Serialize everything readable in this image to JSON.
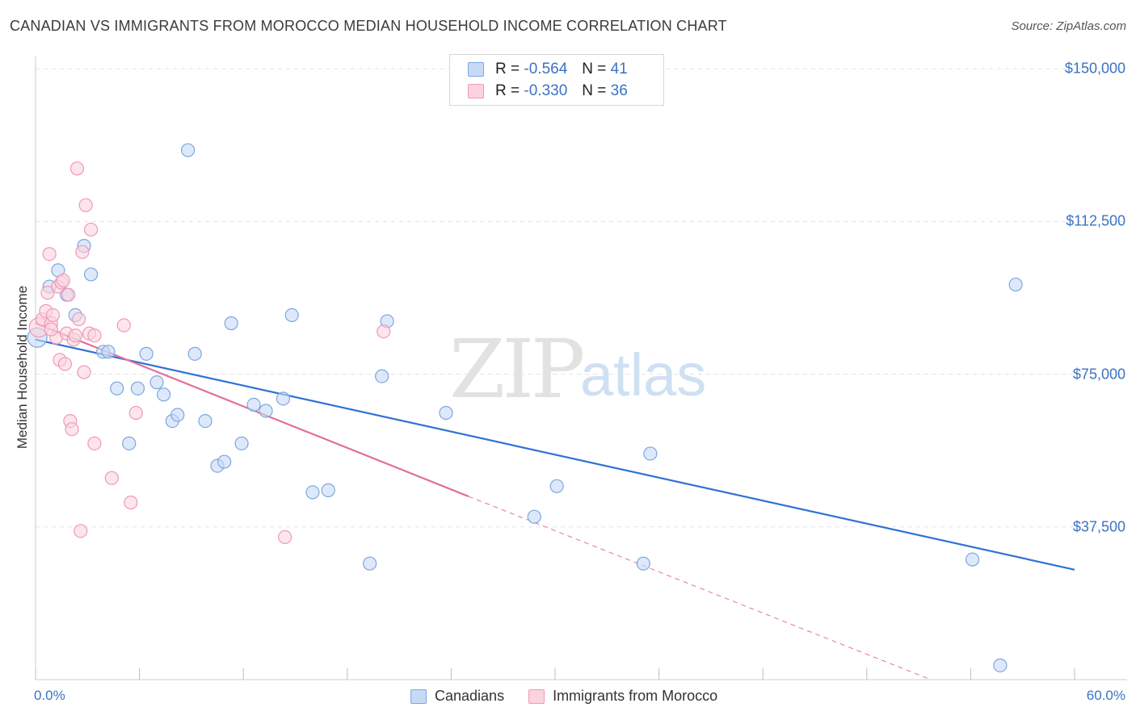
{
  "header": {
    "title": "CANADIAN VS IMMIGRANTS FROM MOROCCO MEDIAN HOUSEHOLD INCOME CORRELATION CHART",
    "source": "Source: ZipAtlas.com"
  },
  "watermark": {
    "zip": "ZIP",
    "atlas": "atlas"
  },
  "legend": {
    "rows": [
      {
        "r_label": "R =",
        "r_value": "-0.564",
        "n_label": "N =",
        "n_value": "41"
      },
      {
        "r_label": "R =",
        "r_value": "-0.330",
        "n_label": "N =",
        "n_value": "36"
      }
    ]
  },
  "bottom_legend": {
    "series1": "Canadians",
    "series2": "Immigrants from Morocco"
  },
  "colors": {
    "canadians_fill": "#c6daf6",
    "canadians_stroke": "#7ea6df",
    "canadians_line": "#2f72d2",
    "morocco_fill": "#fad3df",
    "morocco_stroke": "#f09ab5",
    "morocco_line": "#e2709a",
    "axis_label": "#3b73c4",
    "grid": "#e3e3e3"
  },
  "chart_data": {
    "type": "scatter",
    "title": "CANADIAN VS IMMIGRANTS FROM MOROCCO MEDIAN HOUSEHOLD INCOME CORRELATION CHART",
    "xlabel": "",
    "ylabel": "Median Household Income",
    "xlim": [
      0,
      60
    ],
    "ylim": [
      0,
      153000
    ],
    "x_tick_labels": [
      "0.0%",
      "60.0%"
    ],
    "y_ticks": [
      37500,
      75000,
      112500,
      150000
    ],
    "y_tick_labels": [
      "$37,500",
      "$75,000",
      "$112,500",
      "$150,000"
    ],
    "grid": true,
    "legend_position": "top-center",
    "series": [
      {
        "name": "Canadians",
        "R": -0.564,
        "N": 41,
        "trend": {
          "x": [
            0,
            60
          ],
          "y": [
            83500,
            27000
          ],
          "dashed_from": null
        },
        "points": [
          {
            "x": 0.1,
            "y": 84000
          },
          {
            "x": 0.8,
            "y": 96500
          },
          {
            "x": 1.3,
            "y": 100500
          },
          {
            "x": 1.8,
            "y": 94500
          },
          {
            "x": 2.3,
            "y": 89500
          },
          {
            "x": 2.8,
            "y": 106500
          },
          {
            "x": 3.2,
            "y": 99500
          },
          {
            "x": 3.9,
            "y": 80500
          },
          {
            "x": 4.2,
            "y": 80500
          },
          {
            "x": 4.7,
            "y": 71500
          },
          {
            "x": 5.4,
            "y": 58000
          },
          {
            "x": 5.9,
            "y": 71500
          },
          {
            "x": 6.4,
            "y": 80000
          },
          {
            "x": 7.0,
            "y": 73000
          },
          {
            "x": 7.4,
            "y": 70000
          },
          {
            "x": 7.9,
            "y": 63500
          },
          {
            "x": 8.2,
            "y": 65000
          },
          {
            "x": 8.8,
            "y": 130000
          },
          {
            "x": 9.2,
            "y": 80000
          },
          {
            "x": 9.8,
            "y": 63500
          },
          {
            "x": 10.5,
            "y": 52500
          },
          {
            "x": 10.9,
            "y": 53500
          },
          {
            "x": 11.3,
            "y": 87500
          },
          {
            "x": 11.9,
            "y": 58000
          },
          {
            "x": 12.6,
            "y": 67500
          },
          {
            "x": 13.3,
            "y": 66000
          },
          {
            "x": 14.3,
            "y": 69000
          },
          {
            "x": 14.8,
            "y": 89500
          },
          {
            "x": 16.0,
            "y": 46000
          },
          {
            "x": 16.9,
            "y": 46500
          },
          {
            "x": 19.3,
            "y": 28500
          },
          {
            "x": 20.0,
            "y": 74500
          },
          {
            "x": 20.3,
            "y": 88000
          },
          {
            "x": 23.7,
            "y": 65500
          },
          {
            "x": 28.8,
            "y": 40000
          },
          {
            "x": 30.1,
            "y": 47500
          },
          {
            "x": 35.1,
            "y": 28500
          },
          {
            "x": 35.5,
            "y": 55500
          },
          {
            "x": 54.1,
            "y": 29500
          },
          {
            "x": 55.7,
            "y": 3500
          },
          {
            "x": 56.6,
            "y": 97000
          }
        ]
      },
      {
        "name": "Immigrants from Morocco",
        "R": -0.33,
        "N": 36,
        "trend": {
          "x": [
            0,
            25,
            51.7
          ],
          "y": [
            87500,
            45000,
            0
          ],
          "dashed_from": 25
        },
        "points": [
          {
            "x": 0.2,
            "y": 86500
          },
          {
            "x": 0.4,
            "y": 88500
          },
          {
            "x": 0.6,
            "y": 90500
          },
          {
            "x": 0.7,
            "y": 95000
          },
          {
            "x": 0.8,
            "y": 104500
          },
          {
            "x": 0.9,
            "y": 87500
          },
          {
            "x": 1.0,
            "y": 89500
          },
          {
            "x": 1.2,
            "y": 84000
          },
          {
            "x": 1.3,
            "y": 96500
          },
          {
            "x": 1.4,
            "y": 78500
          },
          {
            "x": 1.5,
            "y": 97500
          },
          {
            "x": 1.6,
            "y": 98000
          },
          {
            "x": 1.7,
            "y": 77500
          },
          {
            "x": 1.8,
            "y": 85000
          },
          {
            "x": 1.9,
            "y": 94500
          },
          {
            "x": 2.0,
            "y": 63500
          },
          {
            "x": 2.1,
            "y": 61500
          },
          {
            "x": 2.2,
            "y": 83500
          },
          {
            "x": 2.3,
            "y": 84500
          },
          {
            "x": 2.4,
            "y": 125500
          },
          {
            "x": 2.5,
            "y": 88500
          },
          {
            "x": 2.6,
            "y": 36500
          },
          {
            "x": 2.7,
            "y": 105000
          },
          {
            "x": 2.8,
            "y": 75500
          },
          {
            "x": 2.9,
            "y": 116500
          },
          {
            "x": 3.1,
            "y": 85000
          },
          {
            "x": 3.2,
            "y": 110500
          },
          {
            "x": 3.4,
            "y": 84500
          },
          {
            "x": 3.4,
            "y": 58000
          },
          {
            "x": 4.4,
            "y": 49500
          },
          {
            "x": 5.1,
            "y": 87000
          },
          {
            "x": 5.5,
            "y": 43500
          },
          {
            "x": 5.8,
            "y": 65500
          },
          {
            "x": 14.4,
            "y": 35000
          },
          {
            "x": 20.1,
            "y": 85500
          },
          {
            "x": 0.9,
            "y": 86000
          }
        ]
      }
    ]
  }
}
